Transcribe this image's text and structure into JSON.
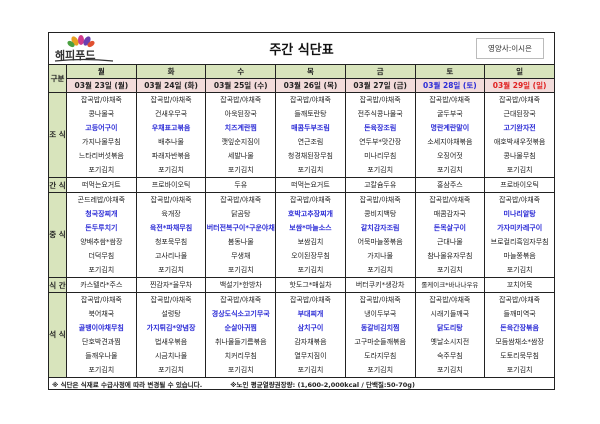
{
  "header": {
    "logo_text": "해피푸드",
    "title": "주간 식단표",
    "nutritionist": "영양사:이시은",
    "category_label": "구분"
  },
  "colors": {
    "label_bg": "#d8e4bc",
    "date_bg": "#f2dcdb",
    "highlight": "#2b2bd6",
    "saturday": "#2b2bd6",
    "sunday": "#e02020"
  },
  "meal_labels": {
    "breakfast": "조 식",
    "snack1": "간 식",
    "lunch": "중 식",
    "snack2": "식 간",
    "dinner": "석 식"
  },
  "days": [
    {
      "day": "월",
      "date": "03월 23일 (월)",
      "breakfast": [
        {
          "t": "잡곡밥/야채죽"
        },
        {
          "t": "콩나물국"
        },
        {
          "t": "고등어구이",
          "hl": true
        },
        {
          "t": "가지나물무침"
        },
        {
          "t": "느타리버섯볶음"
        },
        {
          "t": "포기김치"
        }
      ],
      "snack1": "떠먹는요거트",
      "lunch": [
        {
          "t": "곤드레밥/야채죽"
        },
        {
          "t": "청국장찌개",
          "hl": true
        },
        {
          "t": "돈두루치기",
          "hl": true
        },
        {
          "t": "양배추쌈*쌈장"
        },
        {
          "t": "더덕무침"
        },
        {
          "t": "포기김치"
        }
      ],
      "snack2": "카스텔라*주스",
      "dinner": [
        {
          "t": "잡곡밥/야채죽"
        },
        {
          "t": "북어채국"
        },
        {
          "t": "골뱅이야채무침",
          "hl": true
        },
        {
          "t": "단호박견과찜"
        },
        {
          "t": "들깨우나물"
        },
        {
          "t": "포기김치"
        }
      ]
    },
    {
      "day": "화",
      "date": "03월 24일 (화)",
      "breakfast": [
        {
          "t": "잡곡밥/야채죽"
        },
        {
          "t": "건새우무국"
        },
        {
          "t": "우채표고볶음",
          "hl": true
        },
        {
          "t": "배추나물"
        },
        {
          "t": "파래자반볶음"
        },
        {
          "t": "포기김치"
        }
      ],
      "snack1": "프로바이오틱",
      "lunch": [
        {
          "t": "잡곡밥/야채죽"
        },
        {
          "t": "육개장"
        },
        {
          "t": "육전*파채무침",
          "hl": true
        },
        {
          "t": "청포묵무침"
        },
        {
          "t": "고사리나물"
        },
        {
          "t": "포기김치"
        }
      ],
      "snack2": "찐감자*율무차",
      "dinner": [
        {
          "t": "잡곡밥/야채죽"
        },
        {
          "t": "설렁탕"
        },
        {
          "t": "가지튀김*양념장",
          "hl": true
        },
        {
          "t": "법새우볶음"
        },
        {
          "t": "시금치나물"
        },
        {
          "t": "포기김치"
        }
      ]
    },
    {
      "day": "수",
      "date": "03월 25일 (수)",
      "breakfast": [
        {
          "t": "잡곡밥/야채죽"
        },
        {
          "t": "아욱된장국"
        },
        {
          "t": "치즈계란찜",
          "hl": true
        },
        {
          "t": "깻잎순지짐이"
        },
        {
          "t": "세발나물"
        },
        {
          "t": "포기김치"
        }
      ],
      "snack1": "두유",
      "lunch": [
        {
          "t": "잡곡밥/야채죽"
        },
        {
          "t": "닭곰탕"
        },
        {
          "t": "버터전복구이*구운야채",
          "hl": true
        },
        {
          "t": "봄동나물"
        },
        {
          "t": "무생채"
        },
        {
          "t": "포기김치"
        }
      ],
      "snack2": "백설기*한방차",
      "dinner": [
        {
          "t": "잡곡밥/야채죽"
        },
        {
          "t": "경상도식소고기무국",
          "hl": true
        },
        {
          "t": "순살아귀찜",
          "hl": true
        },
        {
          "t": "취나물들기름볶음"
        },
        {
          "t": "치커리무침"
        },
        {
          "t": "포기김치"
        }
      ]
    },
    {
      "day": "목",
      "date": "03월 26일 (목)",
      "breakfast": [
        {
          "t": "잡곡밥/야채죽"
        },
        {
          "t": "들깨토란탕"
        },
        {
          "t": "매콤두부조림",
          "hl": true
        },
        {
          "t": "연근조림"
        },
        {
          "t": "청경채된장무침"
        },
        {
          "t": "포기김치"
        }
      ],
      "snack1": "떠먹는요거트",
      "lunch": [
        {
          "t": "잡곡밥/야채죽"
        },
        {
          "t": "호박고추장찌개",
          "hl": true
        },
        {
          "t": "보쌈*마늘소스",
          "hl": true
        },
        {
          "t": "보쌈김치"
        },
        {
          "t": "오이된장무침"
        },
        {
          "t": "포기김치"
        }
      ],
      "snack2": "핫도그*매실차",
      "dinner": [
        {
          "t": "잡곡밥/야채죽"
        },
        {
          "t": "부대찌개",
          "hl": true
        },
        {
          "t": "삼치구이",
          "hl": true
        },
        {
          "t": "감자채볶음"
        },
        {
          "t": "열무지짐이"
        },
        {
          "t": "포기김치"
        }
      ]
    },
    {
      "day": "금",
      "date": "03월 27일 (금)",
      "breakfast": [
        {
          "t": "잡곡밥/야채죽"
        },
        {
          "t": "전주식콩나물국"
        },
        {
          "t": "돈육장조림",
          "hl": true
        },
        {
          "t": "연두부*맛간장"
        },
        {
          "t": "미나리무침"
        },
        {
          "t": "포기김치"
        }
      ],
      "snack1": "고칼슘두유",
      "lunch": [
        {
          "t": "잡곡밥/야채죽"
        },
        {
          "t": "콩비지백탕"
        },
        {
          "t": "갈치감자조림",
          "hl": true
        },
        {
          "t": "어묵마늘쫑볶음"
        },
        {
          "t": "가지나물"
        },
        {
          "t": "포기김치"
        }
      ],
      "snack2": "버터쿠키*생강차",
      "dinner": [
        {
          "t": "잡곡밥/야채죽"
        },
        {
          "t": "냉이두부국"
        },
        {
          "t": "동갈비김치찜",
          "hl": true
        },
        {
          "t": "고구마순들깨볶음"
        },
        {
          "t": "도라지무침"
        },
        {
          "t": "포기김치"
        }
      ]
    },
    {
      "day": "토",
      "date": "03월 28일 (토)",
      "date_color": "saturday",
      "breakfast": [
        {
          "t": "잡곡밥/야채죽"
        },
        {
          "t": "굴두부국"
        },
        {
          "t": "명란계란말이",
          "hl": true
        },
        {
          "t": "소세지야채볶음"
        },
        {
          "t": "오징어젓"
        },
        {
          "t": "포기김치"
        }
      ],
      "snack1": "홍삼주스",
      "lunch": [
        {
          "t": "잡곡밥/야채죽"
        },
        {
          "t": "매콤감자국"
        },
        {
          "t": "돈목살구이",
          "hl": true
        },
        {
          "t": "근대나물"
        },
        {
          "t": "참나물유자무침"
        },
        {
          "t": "포기김치"
        }
      ],
      "snack2": "롤케이크*바나나우유",
      "dinner": [
        {
          "t": "잡곡밥/야채죽"
        },
        {
          "t": "시래기들깨국"
        },
        {
          "t": "닭도리탕",
          "hl": true
        },
        {
          "t": "옛날소시지전"
        },
        {
          "t": "숙주무침"
        },
        {
          "t": "포기김치"
        }
      ]
    },
    {
      "day": "일",
      "date": "03월 29일 (일)",
      "date_color": "sunday",
      "breakfast": [
        {
          "t": "잡곡밥/야채죽"
        },
        {
          "t": "근대된장국"
        },
        {
          "t": "고기완자전",
          "hl": true
        },
        {
          "t": "애호박새우젓볶음"
        },
        {
          "t": "콩나물무침"
        },
        {
          "t": "포기김치"
        }
      ],
      "snack1": "프로바이오틱",
      "lunch": [
        {
          "t": "잡곡밥/야채죽"
        },
        {
          "t": "미나리알탕",
          "hl": true
        },
        {
          "t": "가자미카레구이",
          "hl": true
        },
        {
          "t": "브로컬리흑임자무침"
        },
        {
          "t": "마늘쫑볶음"
        },
        {
          "t": "포기김치"
        }
      ],
      "snack2": "꼬치어묵",
      "dinner": [
        {
          "t": "잡곡밥/야채죽"
        },
        {
          "t": "들깨미역국"
        },
        {
          "t": "돈육간장볶음",
          "hl": true
        },
        {
          "t": "모듬쌈채소*쌈장"
        },
        {
          "t": "도토리묵무침"
        },
        {
          "t": "포기김치"
        }
      ]
    }
  ],
  "footer": {
    "note1": "※ 식단은 식재료 수급사정에 따라 변경될 수 있습니다.",
    "note2": "※노인 평균열량권장량: (1,600-2,000kcal / 단백질:50-70g)"
  }
}
